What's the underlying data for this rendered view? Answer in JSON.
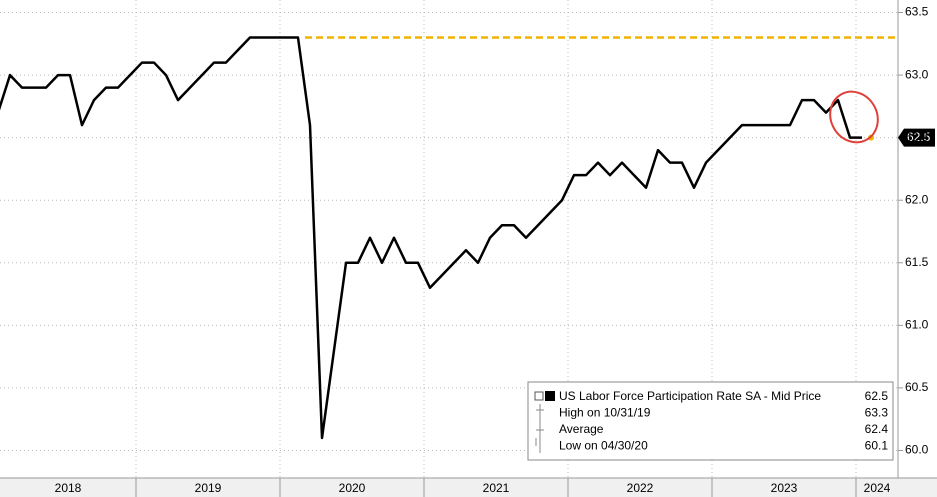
{
  "chart_data": {
    "type": "line",
    "x_labels": [
      "2018",
      "2019",
      "2020",
      "2021",
      "2022",
      "2023",
      "2024"
    ],
    "series": [
      {
        "name": "US Labor Force Participation Rate SA - Mid Price",
        "color": "#000000",
        "values": [
          62.7,
          63.0,
          62.9,
          62.9,
          62.9,
          63.0,
          63.0,
          62.6,
          62.8,
          62.9,
          62.9,
          63.0,
          63.1,
          63.1,
          63.0,
          62.8,
          62.9,
          63.0,
          63.1,
          63.1,
          63.2,
          63.3,
          63.3,
          63.3,
          63.3,
          63.3,
          62.6,
          60.1,
          60.8,
          61.5,
          61.5,
          61.7,
          61.5,
          61.7,
          61.5,
          61.5,
          61.3,
          61.4,
          61.5,
          61.6,
          61.5,
          61.7,
          61.8,
          61.8,
          61.7,
          61.8,
          61.9,
          62.0,
          62.2,
          62.2,
          62.3,
          62.2,
          62.3,
          62.2,
          62.1,
          62.4,
          62.3,
          62.3,
          62.1,
          62.3,
          62.4,
          62.5,
          62.6,
          62.6,
          62.6,
          62.6,
          62.6,
          62.8,
          62.8,
          62.7,
          62.8,
          62.5,
          62.5
        ]
      }
    ],
    "ylim": [
      59.78,
      63.6
    ],
    "yticks": [
      {
        "value": 60,
        "label": "60.0"
      },
      60.5,
      {
        "value": 61,
        "label": "61.0"
      },
      61.5,
      {
        "value": 62,
        "label": "62.0"
      },
      62.5,
      {
        "value": 63,
        "label": "63.0"
      },
      63.5
    ],
    "grid": true,
    "high_line_color": "#f0b400",
    "legend": [
      {
        "label": "US Labor Force Participation Rate SA - Mid Price",
        "value": 62.5
      },
      {
        "label": "High on 10/31/19",
        "value": 63.3
      },
      {
        "label": "Average",
        "value": 62.4
      },
      {
        "label": "Low on 04/30/20",
        "value": 60.1
      }
    ]
  }
}
